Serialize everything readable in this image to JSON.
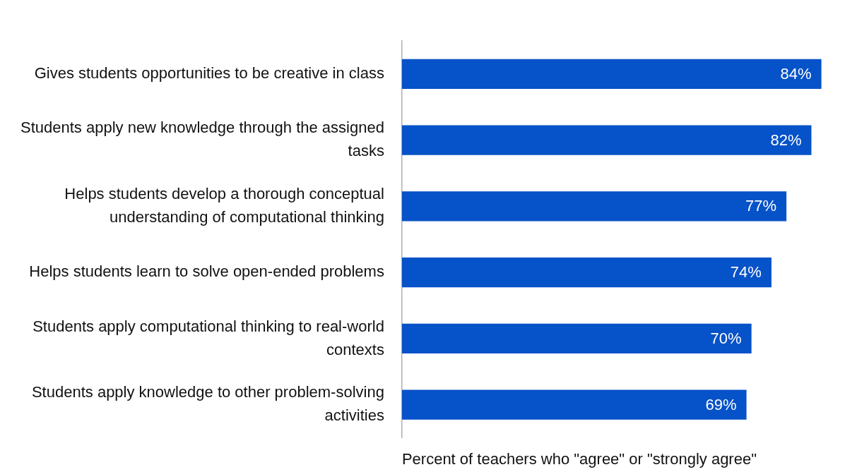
{
  "chart_data": {
    "type": "bar",
    "orientation": "horizontal",
    "xlabel": "Percent of teachers who \"agree\" or \"strongly agree\"",
    "categories": [
      "Gives students opportunities to be creative in class",
      "Students apply new knowledge through the assigned tasks",
      "Helps students develop a thorough conceptual understanding of computational thinking",
      "Helps students learn to solve open-ended problems",
      "Students apply computational thinking to real-world contexts",
      "Students apply knowledge to other problem-solving activities"
    ],
    "values": [
      84,
      82,
      77,
      74,
      70,
      69
    ],
    "value_labels": [
      "84%",
      "82%",
      "77%",
      "74%",
      "70%",
      "69%"
    ],
    "color": "#0652c8",
    "grid": false,
    "legend": false
  }
}
